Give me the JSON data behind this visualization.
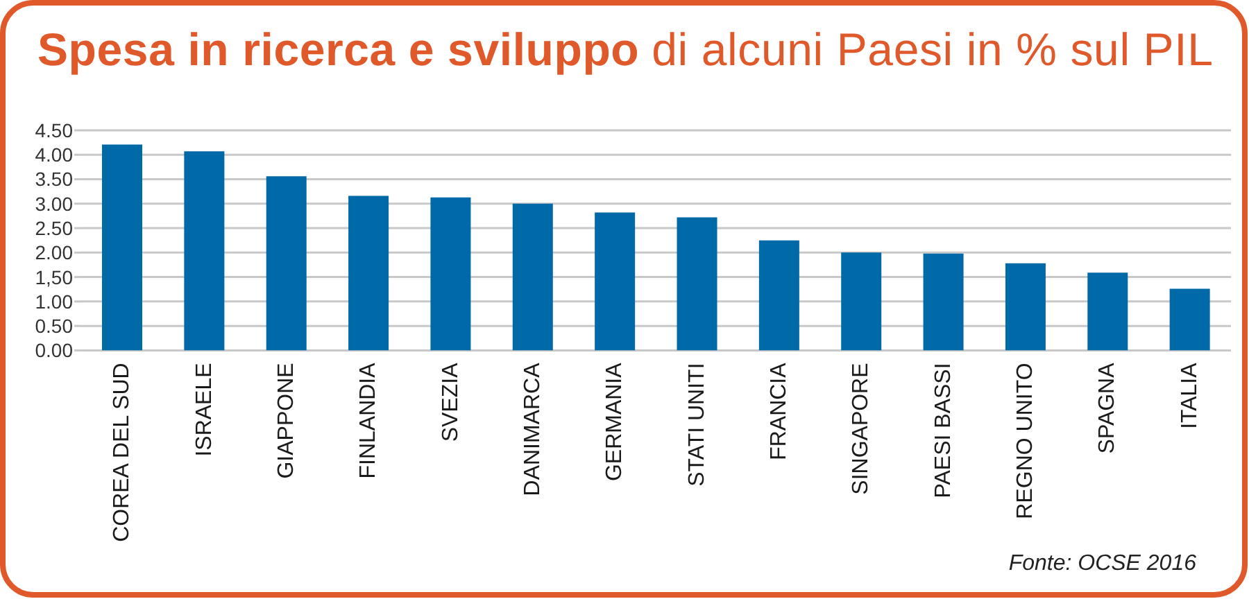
{
  "chart_data": {
    "type": "bar",
    "title": "Spesa in ricerca e sviluppo",
    "subtitle": "di alcuni Paesi in % sul PIL",
    "categories": [
      "COREA DEL SUD",
      "ISRAELE",
      "GIAPPONE",
      "FINLANDIA",
      "SVEZIA",
      "DANIMARCA",
      "GERMANIA",
      "STATI UNITI",
      "FRANCIA",
      "SINGAPORE",
      "PAESI BASSI",
      "REGNO UNITO",
      "SPAGNA",
      "ITALIA"
    ],
    "values": [
      4.21,
      4.07,
      3.56,
      3.16,
      3.13,
      3.0,
      2.82,
      2.72,
      2.25,
      2.0,
      1.98,
      1.78,
      1.59,
      1.26
    ],
    "color": "#0069a8",
    "ylim": [
      0,
      4.5
    ],
    "yticks": [
      {
        "value": 0,
        "label": "0.00"
      },
      {
        "value": 0.5,
        "label": "0.50"
      },
      {
        "value": 1,
        "label": "1.00"
      },
      {
        "value": 1.5,
        "label": "1,50"
      },
      {
        "value": 2,
        "label": "2.00"
      },
      {
        "value": 2.5,
        "label": "2.50"
      },
      {
        "value": 3,
        "label": "3.00"
      },
      {
        "value": 3.5,
        "label": "3.50"
      },
      {
        "value": 4,
        "label": "4.00"
      },
      {
        "value": 4.5,
        "label": "4.50"
      }
    ],
    "grid": "y",
    "annotations": [
      "Fonte: OCSE 2016"
    ]
  }
}
